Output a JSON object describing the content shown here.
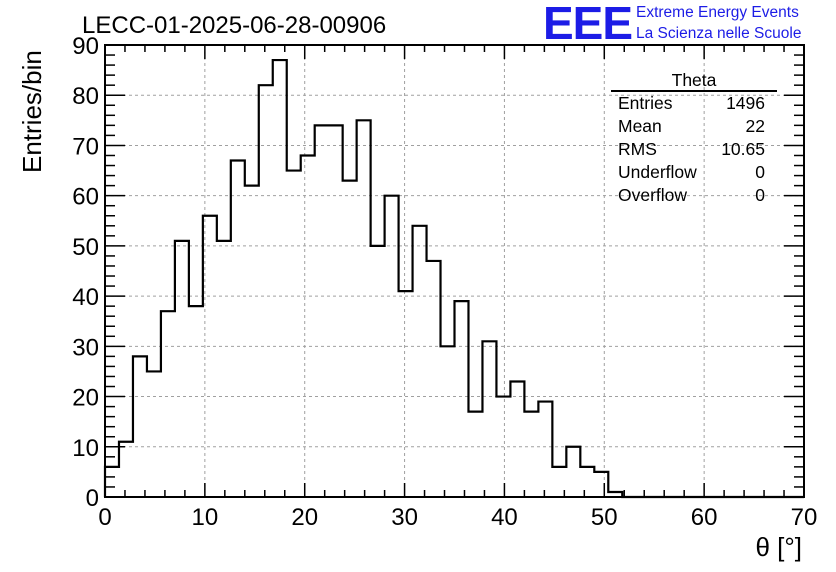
{
  "page_title": "LECC-01-2025-06-28-00906",
  "logo": {
    "text": "EEE",
    "line1": "Extreme Energy Events",
    "line2": "La Scienza nelle Scuole",
    "color": "#1c1ce6"
  },
  "stats": {
    "title": "Theta",
    "rows": [
      {
        "label": "Entries",
        "value": "1496"
      },
      {
        "label": "Mean",
        "value": "22"
      },
      {
        "label": "RMS",
        "value": "10.65"
      },
      {
        "label": "Underflow",
        "value": "0"
      },
      {
        "label": "Overflow",
        "value": "0"
      }
    ]
  },
  "chart_data": {
    "type": "histogram",
    "title": "LECC-01-2025-06-28-00906",
    "xlabel": "θ [°]",
    "ylabel": "Entries/bin",
    "xlim": [
      0,
      70
    ],
    "ylim": [
      0,
      90
    ],
    "x_ticks": [
      0,
      10,
      20,
      30,
      40,
      50,
      60,
      70
    ],
    "y_ticks": [
      0,
      10,
      20,
      30,
      40,
      50,
      60,
      70,
      80,
      90
    ],
    "bin_width": 1.4,
    "bin_start": 0,
    "values": [
      6,
      11,
      28,
      25,
      37,
      51,
      38,
      56,
      51,
      67,
      62,
      82,
      87,
      65,
      68,
      74,
      74,
      63,
      75,
      50,
      60,
      41,
      54,
      47,
      30,
      39,
      17,
      31,
      20,
      23,
      17,
      19,
      6,
      10,
      6,
      5,
      1,
      0,
      0,
      0,
      0,
      0,
      0,
      0,
      0,
      0,
      0,
      0,
      0,
      0
    ],
    "grid": true,
    "line_color": "#000000",
    "grid_color": "#a0a0a0"
  }
}
